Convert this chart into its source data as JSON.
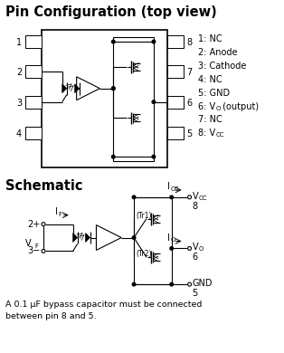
{
  "title1": "Pin Configuration (top view)",
  "title2": "Schematic",
  "right_labels": [
    "1: NC",
    "2: Anode",
    "3: Cathode",
    "4: NC",
    "5: GND",
    "6: VO (output)",
    "7: NC",
    "8: VCC"
  ],
  "footnote": "A 0.1 μF bypass capacitor must be connected\nbetween pin 8 and 5.",
  "bg_color": "#ffffff",
  "line_color": "#000000"
}
